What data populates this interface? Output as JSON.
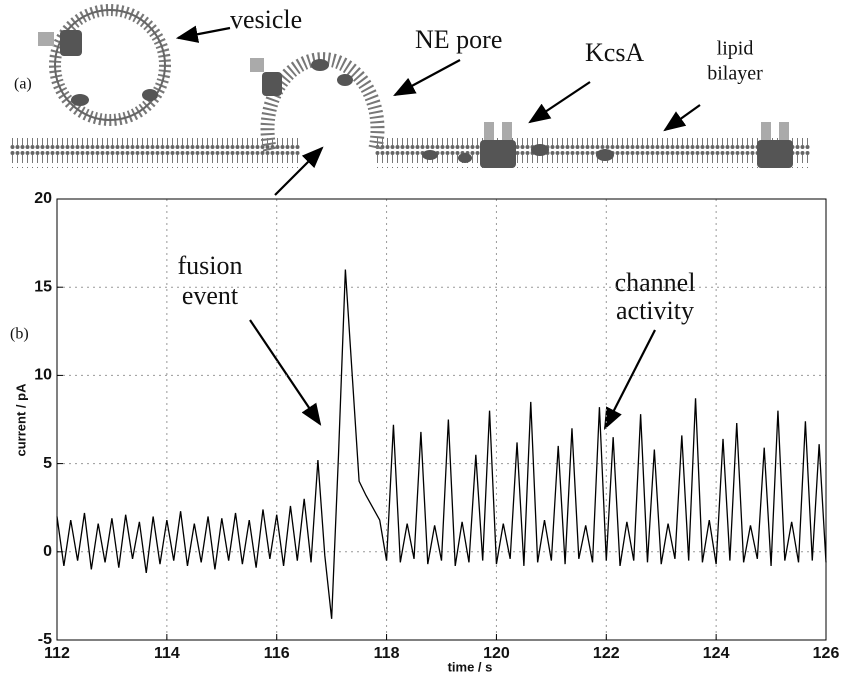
{
  "schematic": {
    "panel_label": "(a)",
    "labels": {
      "vesicle": "vesicle",
      "ne_pore": "NE pore",
      "kcsa": "KcsA",
      "lipid_bilayer": [
        "lipid",
        "bilayer"
      ]
    }
  },
  "chart_data": {
    "type": "line",
    "panel_label": "(b)",
    "x_label": "time / s",
    "y_label": "current / pA",
    "xlim": [
      112,
      126
    ],
    "ylim": [
      -5,
      20
    ],
    "xticks": [
      112,
      114,
      116,
      118,
      120,
      122,
      124,
      126
    ],
    "yticks": [
      -5,
      0,
      5,
      10,
      15,
      20
    ],
    "grid": true,
    "color": "#000000",
    "annotations": [
      [
        "fusion",
        "event"
      ],
      [
        "channel",
        "activity"
      ]
    ],
    "x": [
      112,
      112.125,
      112.25,
      112.375,
      112.5,
      112.625,
      112.75,
      112.875,
      113,
      113.125,
      113.25,
      113.375,
      113.5,
      113.625,
      113.75,
      113.875,
      114,
      114.125,
      114.25,
      114.375,
      114.5,
      114.625,
      114.75,
      114.875,
      115,
      115.125,
      115.25,
      115.375,
      115.5,
      115.625,
      115.75,
      115.875,
      116,
      116.125,
      116.25,
      116.375,
      116.5,
      116.625,
      116.75,
      116.875,
      117,
      117.125,
      117.25,
      117.375,
      117.5,
      117.625,
      117.75,
      117.875,
      118,
      118.125,
      118.25,
      118.375,
      118.5,
      118.625,
      118.75,
      118.875,
      119,
      119.125,
      119.25,
      119.375,
      119.5,
      119.625,
      119.75,
      119.875,
      120,
      120.125,
      120.25,
      120.375,
      120.5,
      120.625,
      120.75,
      120.875,
      121,
      121.125,
      121.25,
      121.375,
      121.5,
      121.625,
      121.75,
      121.875,
      122,
      122.125,
      122.25,
      122.375,
      122.5,
      122.625,
      122.75,
      122.875,
      123,
      123.125,
      123.25,
      123.375,
      123.5,
      123.625,
      123.75,
      123.875,
      124,
      124.125,
      124.25,
      124.375,
      124.5,
      124.625,
      124.75,
      124.875,
      125,
      125.125,
      125.25,
      125.375,
      125.5,
      125.625,
      125.75,
      125.875,
      126
    ],
    "values": [
      2.0,
      -0.8,
      1.8,
      -0.5,
      2.2,
      -1.0,
      1.6,
      -0.6,
      1.9,
      -0.9,
      2.1,
      -0.4,
      1.7,
      -1.2,
      2.0,
      -0.7,
      1.8,
      -0.5,
      2.3,
      -0.8,
      1.6,
      -0.6,
      2.0,
      -1.0,
      1.9,
      -0.5,
      2.2,
      -0.7,
      1.8,
      -0.9,
      2.4,
      -0.4,
      2.1,
      -0.8,
      2.6,
      -0.5,
      3.0,
      -0.6,
      5.2,
      -0.2,
      -3.8,
      5.5,
      16,
      10,
      4,
      3.2,
      2.5,
      1.8,
      -0.5,
      7.2,
      -0.6,
      1.6,
      -0.4,
      6.8,
      -0.7,
      1.5,
      -0.5,
      7.5,
      -0.8,
      1.7,
      -0.6,
      5.5,
      -0.5,
      8.0,
      -0.7,
      1.6,
      -0.4,
      6.2,
      -0.8,
      8.5,
      -0.6,
      1.8,
      -0.5,
      6.0,
      -0.7,
      7.0,
      -0.4,
      1.5,
      -0.6,
      8.2,
      -0.5,
      6.5,
      -0.8,
      1.7,
      -0.5,
      7.8,
      -0.6,
      5.8,
      -0.7,
      1.6,
      -0.4,
      6.6,
      -0.5,
      8.7,
      -0.6,
      1.8,
      -0.7,
      6.4,
      -0.5,
      7.3,
      -0.6,
      1.5,
      -0.4,
      5.9,
      -0.8,
      8.0,
      -0.5,
      1.7,
      -0.6,
      7.4,
      -0.5,
      6.1,
      -0.6
    ]
  }
}
